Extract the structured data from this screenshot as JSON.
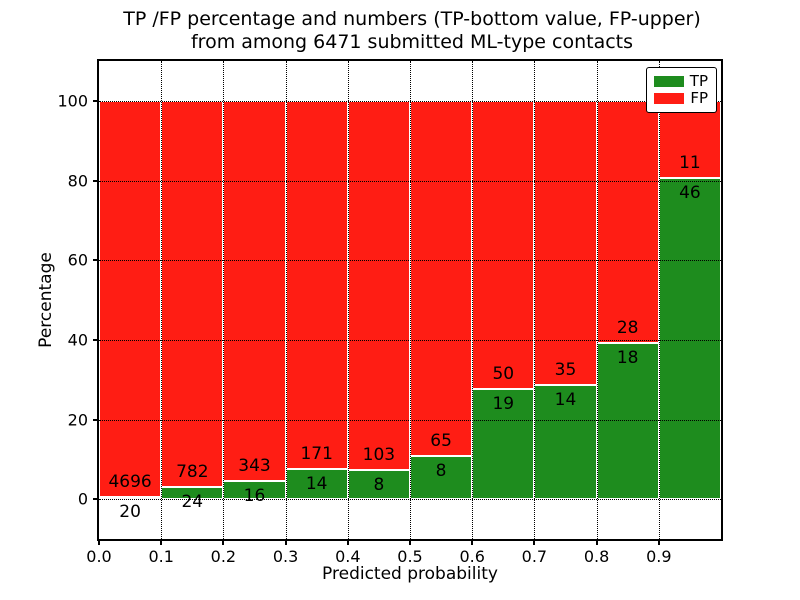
{
  "title": {
    "line1": "TP /FP percentage and numbers (TP-bottom value, FP-upper)",
    "line2": "from among 6471 submitted ML-type contacts"
  },
  "chart_data": {
    "type": "bar",
    "stacked": true,
    "normalized_to_percent": true,
    "title": "TP /FP percentage and numbers (TP-bottom value, FP-upper)\nfrom among 6471 submitted ML-type contacts",
    "xlabel": "Predicted probability",
    "ylabel": "Percentage",
    "total_contacts": 6471,
    "bins": [
      [
        0.0,
        0.1
      ],
      [
        0.1,
        0.2
      ],
      [
        0.2,
        0.3
      ],
      [
        0.3,
        0.4
      ],
      [
        0.4,
        0.5
      ],
      [
        0.5,
        0.6
      ],
      [
        0.6,
        0.7
      ],
      [
        0.7,
        0.8
      ],
      [
        0.8,
        0.9
      ],
      [
        0.9,
        1.0
      ]
    ],
    "series": [
      {
        "name": "TP",
        "color": "#1e8c1e",
        "counts": [
          20,
          24,
          16,
          14,
          8,
          8,
          19,
          14,
          18,
          46
        ],
        "percent_of_bin": [
          0.42,
          2.98,
          4.46,
          7.57,
          7.21,
          10.96,
          27.54,
          28.57,
          39.13,
          80.7
        ]
      },
      {
        "name": "FP",
        "color": "#ff1d14",
        "counts": [
          4696,
          782,
          343,
          171,
          103,
          65,
          50,
          35,
          28,
          11
        ],
        "percent_of_bin": [
          99.58,
          97.02,
          95.54,
          92.43,
          92.79,
          89.04,
          72.46,
          71.43,
          60.87,
          19.3
        ]
      }
    ],
    "xticks": [
      "0.0",
      "0.1",
      "0.2",
      "0.3",
      "0.4",
      "0.5",
      "0.6",
      "0.7",
      "0.8",
      "0.9"
    ],
    "yticks": [
      "0",
      "20",
      "40",
      "60",
      "80",
      "100"
    ],
    "xlim": [
      0.0,
      1.0
    ],
    "ylim": [
      -10,
      110
    ],
    "grid": "dotted, both axes, drawn above bars",
    "legend": {
      "position": "upper right",
      "entries": [
        {
          "label": "TP",
          "color": "#1e8c1e"
        },
        {
          "label": "FP",
          "color": "#ff1d14"
        }
      ]
    }
  }
}
